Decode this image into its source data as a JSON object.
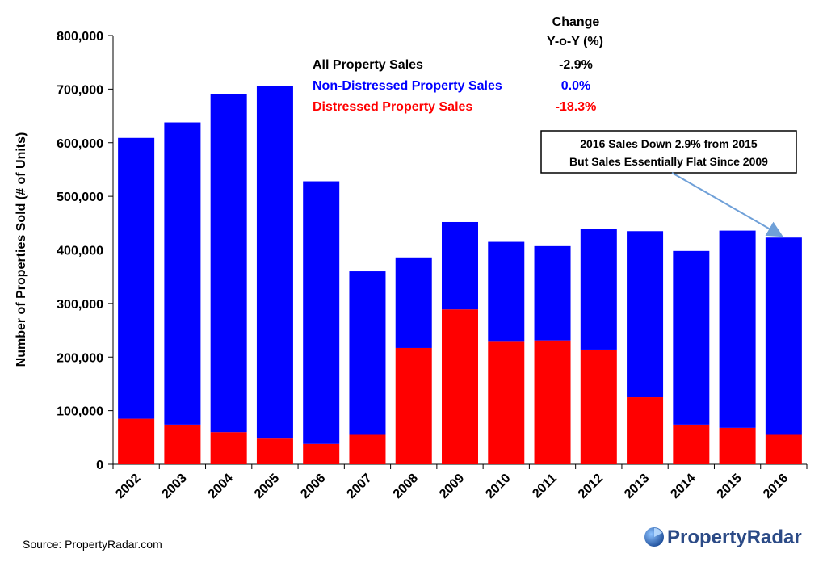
{
  "source_text": "Source: PropertyRadar.com",
  "logo_text": "PropertyRadar",
  "colors": {
    "total": "#000000",
    "non_distressed": "#0000ff",
    "distressed": "#ff0000",
    "axis": "#000000",
    "annotation_arrow": "#6fa0d8",
    "logo_text": "#2b4a86",
    "logo_badge": "#2f6db5"
  },
  "legend_block": {
    "change_header_line1": "Change",
    "change_header_line2": "Y-o-Y (%)",
    "rows": [
      {
        "label": "All Property Sales",
        "change": "-2.9%",
        "color": "#000000"
      },
      {
        "label": "Non-Distressed Property Sales",
        "change": "0.0%",
        "color": "#0000ff"
      },
      {
        "label": "Distressed Property Sales",
        "change": "-18.3%",
        "color": "#ff0000"
      }
    ]
  },
  "annotation": {
    "line1": "2016 Sales Down 2.9% from 2015",
    "line2": "But Sales Essentially Flat Since 2009",
    "target_year": "2016"
  },
  "chart_data": {
    "type": "bar",
    "stacked": true,
    "categories": [
      "2002",
      "2003",
      "2004",
      "2005",
      "2006",
      "2007",
      "2008",
      "2009",
      "2010",
      "2011",
      "2012",
      "2013",
      "2014",
      "2015",
      "2016"
    ],
    "series": [
      {
        "name": "Distressed Property Sales",
        "color": "#ff0000",
        "values": [
          85000,
          74000,
          60000,
          48000,
          38000,
          55000,
          217000,
          289000,
          230000,
          231000,
          214000,
          125000,
          74000,
          68000,
          55000
        ]
      },
      {
        "name": "Non-Distressed Property Sales",
        "color": "#0000ff",
        "values": [
          524000,
          564000,
          631000,
          658000,
          490000,
          305000,
          169000,
          163000,
          185000,
          176000,
          225000,
          310000,
          324000,
          368000,
          368000
        ]
      }
    ],
    "totals": [
      609000,
      638000,
      691000,
      706000,
      528000,
      360000,
      386000,
      452000,
      415000,
      407000,
      439000,
      435000,
      398000,
      436000,
      423000
    ],
    "title": "",
    "xlabel": "",
    "ylabel": "Number of Properties Sold (# of Units)",
    "ylim": [
      0,
      800000
    ],
    "yticks": [
      0,
      100000,
      200000,
      300000,
      400000,
      500000,
      600000,
      700000,
      800000
    ],
    "ytick_labels": [
      "0",
      "100,000",
      "200,000",
      "300,000",
      "400,000",
      "500,000",
      "600,000",
      "700,000",
      "800,000"
    ],
    "grid": false,
    "legend": "top-center"
  }
}
